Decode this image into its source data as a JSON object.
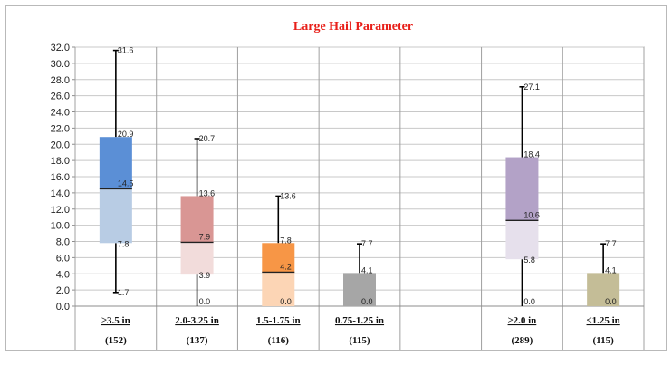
{
  "chart_data": {
    "type": "box",
    "title": "Large Hail Parameter",
    "title_color": "#e8201a",
    "ylim": [
      0,
      32
    ],
    "yticks": [
      "0.0",
      "2.0",
      "4.0",
      "6.0",
      "8.0",
      "10.0",
      "12.0",
      "14.0",
      "16.0",
      "18.0",
      "20.0",
      "22.0",
      "24.0",
      "26.0",
      "28.0",
      "30.0",
      "32.0"
    ],
    "grid": true,
    "categories": [
      {
        "label": "≥3.5 in",
        "count": "(152)",
        "min": 1.7,
        "q1": 7.8,
        "median": 14.5,
        "q3": 20.9,
        "max": 31.6,
        "labels": {
          "min": "1.7",
          "q1": "7.8",
          "median": "14.5",
          "q3": "20.9",
          "max": "31.6"
        },
        "upper_color": "#5b8fd6",
        "lower_color": "#b8cce4"
      },
      {
        "label": "2.0-3.25 in",
        "count": "(137)",
        "min": 0.0,
        "q1": 3.9,
        "median": 7.9,
        "q3": 13.6,
        "max": 20.7,
        "labels": {
          "min": "0.0",
          "q1": "3.9",
          "median": "7.9",
          "q3": "13.6",
          "max": "20.7"
        },
        "upper_color": "#d99694",
        "lower_color": "#f2dcdb"
      },
      {
        "label": "1.5-1.75 in",
        "count": "(116)",
        "min": 0.0,
        "q1": 0.0,
        "median": 4.2,
        "q3": 7.8,
        "max": 13.6,
        "labels": {
          "min": "0.0",
          "q1": "",
          "median": "4.2",
          "q3": "7.8",
          "max": "13.6"
        },
        "upper_color": "#f79646",
        "lower_color": "#fcd5b5"
      },
      {
        "label": "0.75-1.25 in",
        "count": "(115)",
        "min": 0.0,
        "q1": 0.0,
        "median": 0.0,
        "q3": 4.1,
        "max": 7.7,
        "labels": {
          "min": "0.0",
          "q1": "",
          "median": "",
          "q3": "4.1",
          "max": "7.7"
        },
        "upper_color": "#a6a6a6",
        "lower_color": "#d9d9d9"
      },
      {
        "label": "",
        "count": "",
        "empty": true
      },
      {
        "label": "≥2.0 in",
        "count": "(289)",
        "min": 0.0,
        "q1": 5.8,
        "median": 10.6,
        "q3": 18.4,
        "max": 27.1,
        "labels": {
          "min": "0.0",
          "q1": "5.8",
          "median": "10.6",
          "q3": "18.4",
          "max": "27.1"
        },
        "upper_color": "#b3a2c7",
        "lower_color": "#e6e0ec"
      },
      {
        "label": "≤1.25 in",
        "count": "(115)",
        "min": 0.0,
        "q1": 0.0,
        "median": 0.0,
        "q3": 4.1,
        "max": 7.7,
        "labels": {
          "min": "0.0",
          "q1": "",
          "median": "",
          "q3": "4.1",
          "max": "7.7"
        },
        "upper_color": "#c4bd97",
        "lower_color": "#ddd9c3"
      }
    ]
  }
}
